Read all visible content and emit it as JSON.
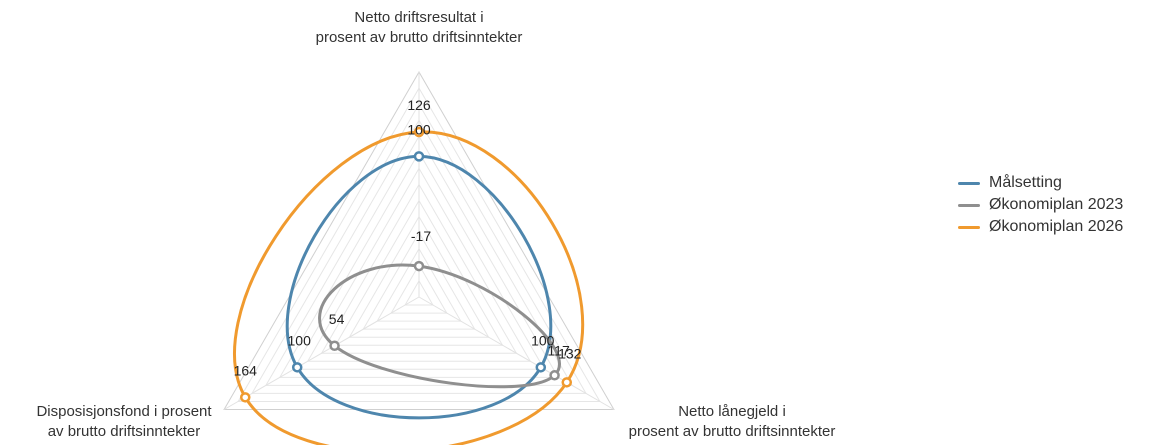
{
  "chart_data": {
    "type": "radar",
    "axes": [
      [
        "Netto driftsresultat i",
        "prosent av brutto driftsinntekter"
      ],
      [
        "Netto lånegjeld i",
        "prosent av brutto driftsinntekter"
      ],
      [
        "Disposisjonsfond i prosent",
        "av brutto driftsinntekter"
      ]
    ],
    "rlim": [
      -50,
      190
    ],
    "grid": true,
    "legend_position": "right",
    "series": [
      {
        "name": "Målsetting",
        "color": "#4e86ad",
        "values": [
          100,
          100,
          100
        ]
      },
      {
        "name": "Økonomiplan 2023",
        "color": "#8f8f8f",
        "values": [
          -17,
          117,
          54
        ]
      },
      {
        "name": "Økonomiplan 2026",
        "color": "#f09a2e",
        "values": [
          126,
          132,
          164
        ]
      }
    ],
    "data_labels": [
      {
        "text": "126",
        "series": 2,
        "axis": 0
      },
      {
        "text": "100",
        "series": 0,
        "axis": 0
      },
      {
        "text": "-17",
        "series": 1,
        "axis": 0
      },
      {
        "text": "100",
        "series": 0,
        "axis": 1
      },
      {
        "text": "117",
        "series": 1,
        "axis": 1
      },
      {
        "text": "132",
        "series": 2,
        "axis": 1
      },
      {
        "text": "54",
        "series": 1,
        "axis": 2
      },
      {
        "text": "100",
        "series": 0,
        "axis": 2
      },
      {
        "text": "164",
        "series": 2,
        "axis": 2
      }
    ]
  }
}
